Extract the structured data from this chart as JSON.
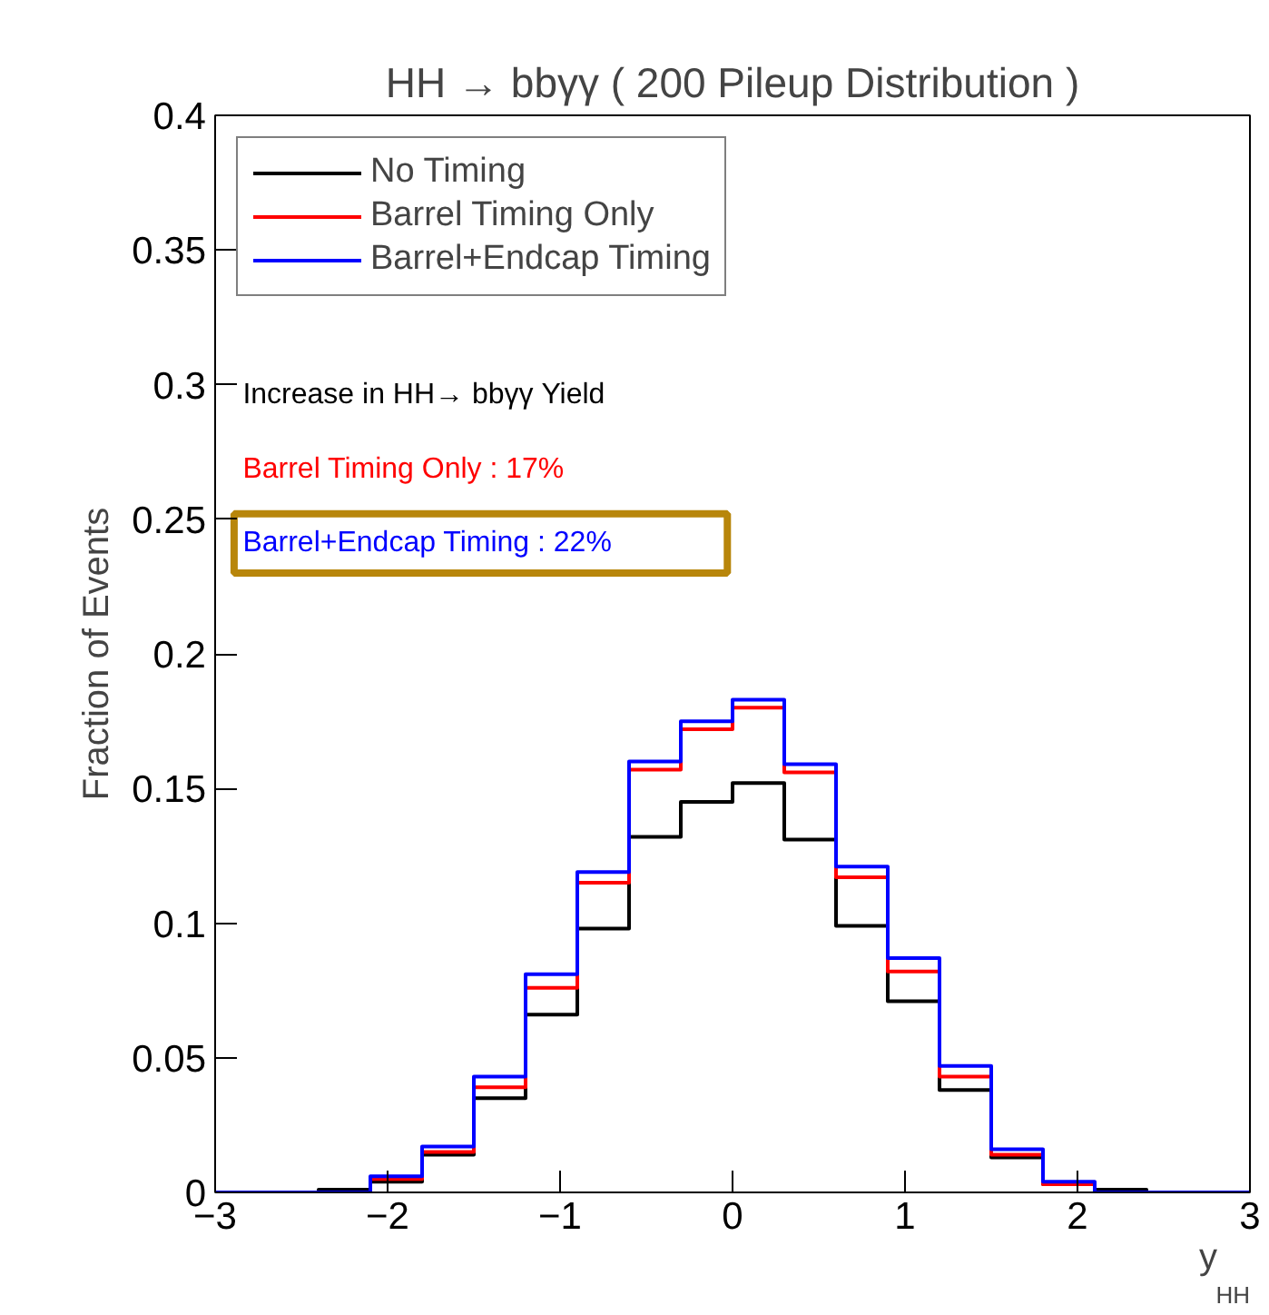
{
  "chart_data": {
    "type": "histogram",
    "title": "HH → bbγγ ( 200 Pileup Distribution )",
    "xlabel": "y$_{HH}$",
    "ylabel": "Fraction of Events",
    "bins": [
      -3,
      -2.7,
      -2.4,
      -2.1,
      -1.8,
      -1.5,
      -1.2,
      -0.9,
      -0.6,
      -0.3,
      0,
      0.3,
      0.6,
      0.9,
      1.2,
      1.5,
      1.8,
      2.1,
      2.4,
      2.7,
      3
    ],
    "series": [
      {
        "name": "No Timing",
        "color": "#000000",
        "values": [
          0,
          0,
          0.001,
          0.004,
          0.014,
          0.035,
          0.066,
          0.098,
          0.132,
          0.145,
          0.152,
          0.131,
          0.099,
          0.071,
          0.038,
          0.013,
          0.003,
          0.001,
          0,
          0
        ]
      },
      {
        "name": "Barrel Timing Only",
        "color": "#ff0000",
        "values": [
          0,
          0,
          0,
          0.005,
          0.015,
          0.039,
          0.076,
          0.115,
          0.157,
          0.172,
          0.18,
          0.156,
          0.117,
          0.082,
          0.043,
          0.014,
          0.003,
          0,
          0,
          0
        ]
      },
      {
        "name": "Barrel+Endcap Timing",
        "color": "#0000ff",
        "values": [
          0,
          0,
          0,
          0.006,
          0.017,
          0.043,
          0.081,
          0.119,
          0.16,
          0.175,
          0.183,
          0.159,
          0.121,
          0.087,
          0.047,
          0.016,
          0.004,
          0,
          0,
          0
        ]
      }
    ],
    "annotations": [
      "Increase in HH→ bbγγ Yield",
      "Barrel Timing Only : 17%",
      "Barrel+Endcap Timing : 22%"
    ],
    "xlim": [
      -3,
      3
    ],
    "ylim": [
      0,
      0.4
    ],
    "xticks": [
      {
        "value": -3,
        "label": "−3"
      },
      {
        "value": -2,
        "label": "−2"
      },
      {
        "value": -1,
        "label": "−1"
      },
      0,
      1,
      2,
      3
    ],
    "yticks": [
      0,
      0.05,
      0.1,
      0.15,
      0.2,
      0.25,
      0.3,
      0.35,
      0.4
    ],
    "grid": false,
    "legend": "top left"
  }
}
